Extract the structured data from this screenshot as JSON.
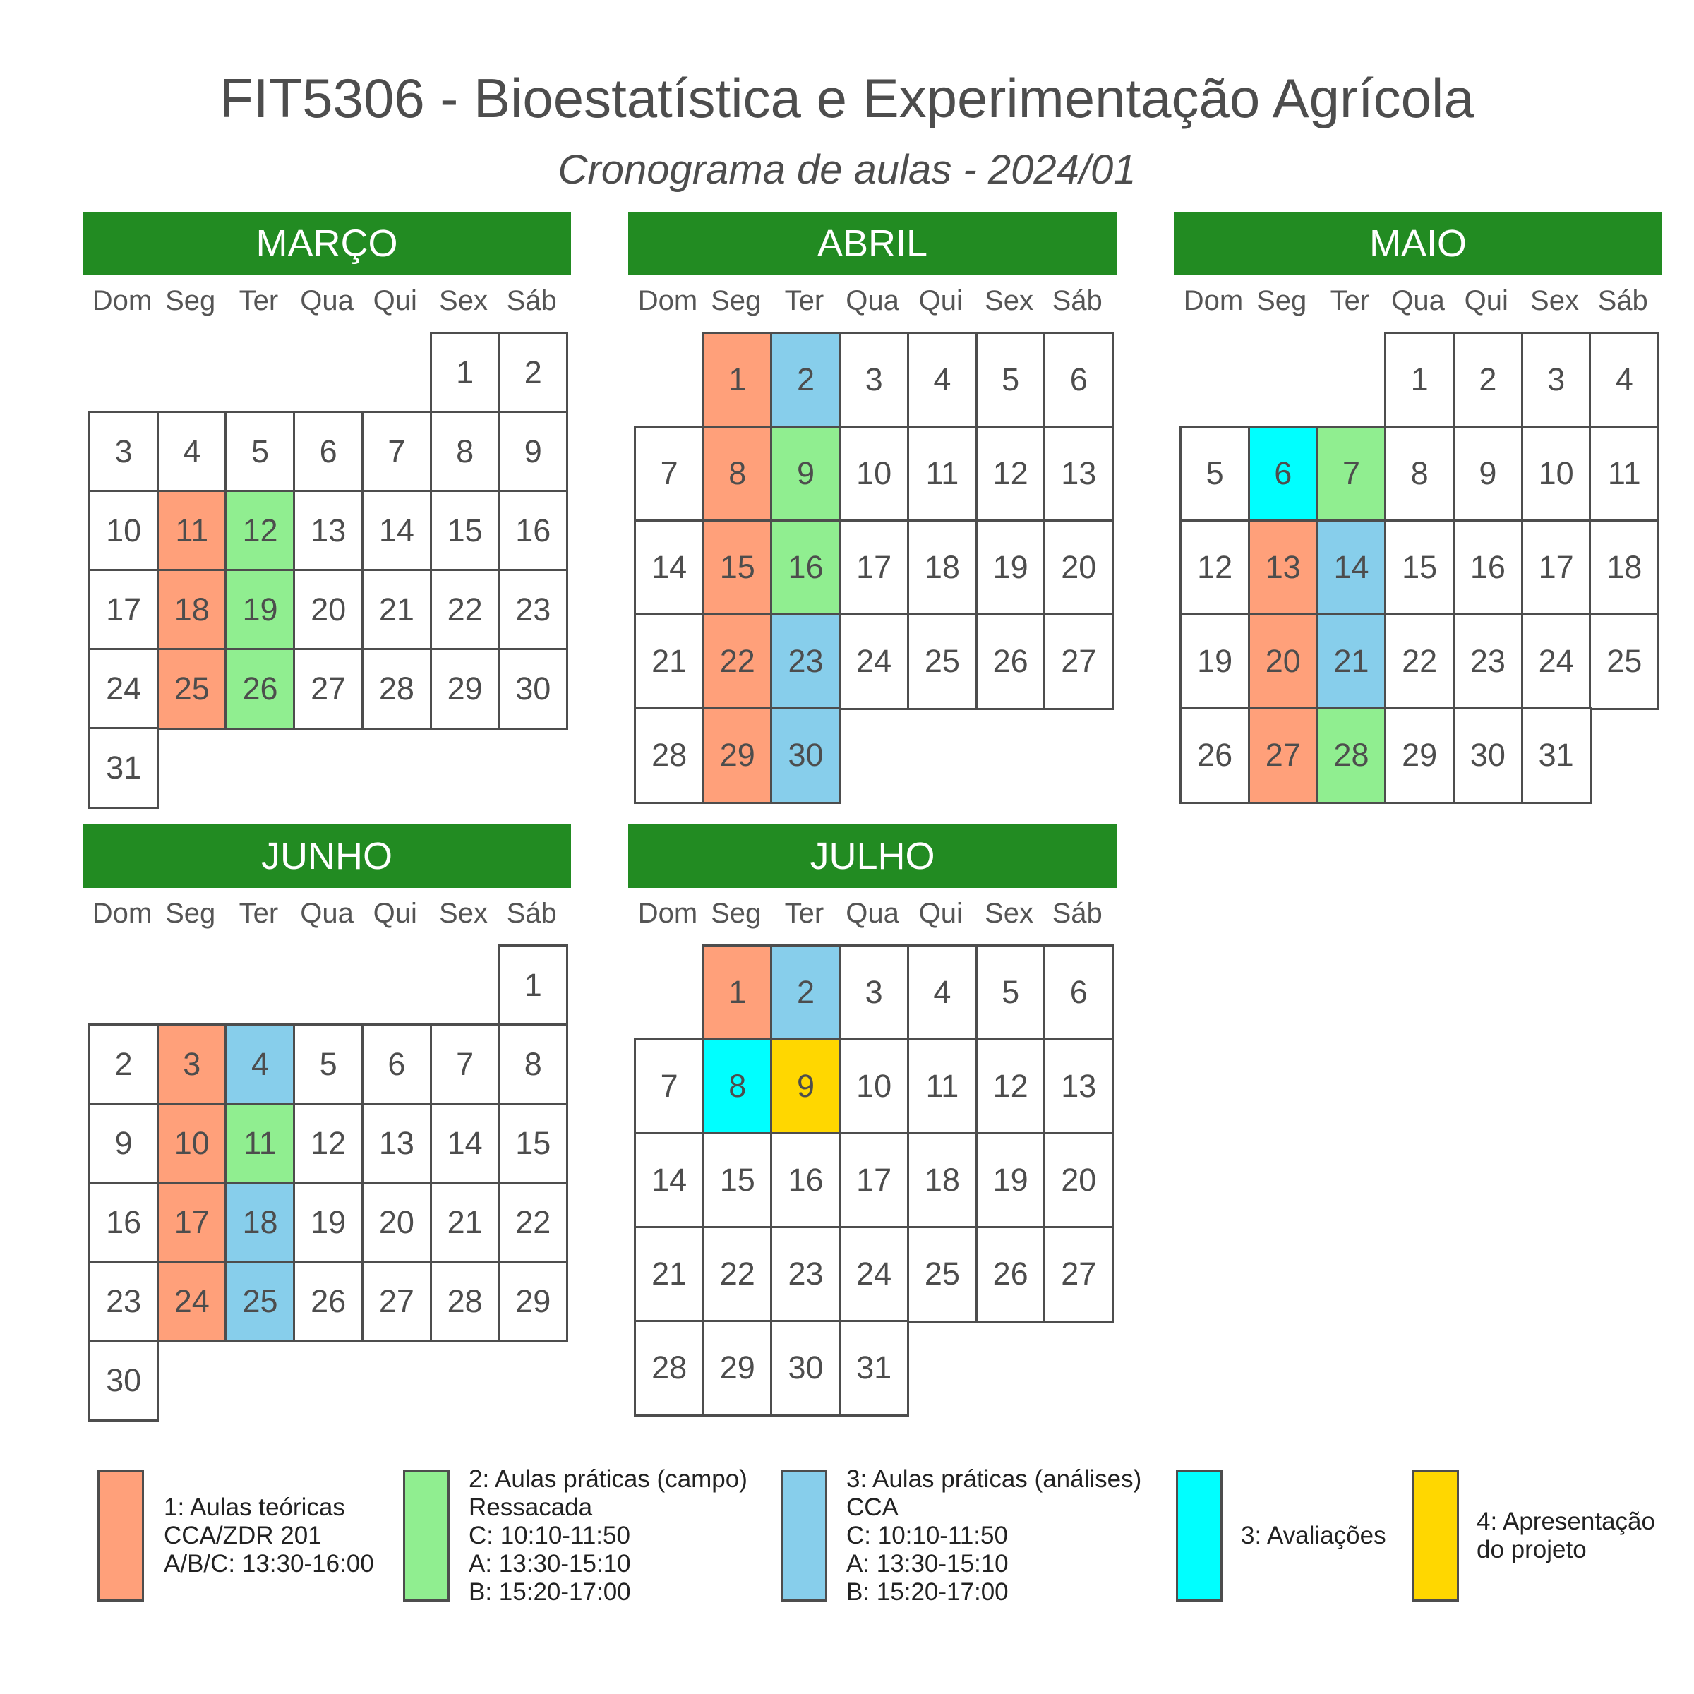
{
  "header": {
    "title": "FIT5306 - Bioestatística e Experimentação Agrícola",
    "subtitle": "Cronograma de aulas - 2024/01"
  },
  "weekdays": [
    "Dom",
    "Seg",
    "Ter",
    "Qua",
    "Qui",
    "Sex",
    "Sáb"
  ],
  "colors": {
    "header_green": "#228B22",
    "border": "#4d4d4d",
    "teorica": "#FFA07A",
    "campo": "#90EE90",
    "analises": "#87CEEB",
    "avaliacao": "#00FFFF",
    "apresentacao": "#FFD700",
    "empty": "#FFFFFF"
  },
  "months": [
    {
      "name": "MARÇO",
      "days": 31,
      "first_weekday": 5,
      "highlights": {
        "11": "teorica",
        "18": "teorica",
        "25": "teorica",
        "12": "campo",
        "19": "campo",
        "26": "campo"
      }
    },
    {
      "name": "ABRIL",
      "days": 30,
      "first_weekday": 1,
      "highlights": {
        "1": "teorica",
        "8": "teorica",
        "15": "teorica",
        "22": "teorica",
        "29": "teorica",
        "2": "analises",
        "9": "campo",
        "16": "campo",
        "23": "analises",
        "30": "analises"
      }
    },
    {
      "name": "MAIO",
      "days": 31,
      "first_weekday": 3,
      "highlights": {
        "6": "avaliacao",
        "7": "campo",
        "13": "teorica",
        "14": "analises",
        "20": "teorica",
        "21": "analises",
        "27": "teorica",
        "28": "campo"
      }
    },
    {
      "name": "JUNHO",
      "days": 30,
      "first_weekday": 6,
      "highlights": {
        "3": "teorica",
        "4": "analises",
        "10": "teorica",
        "11": "campo",
        "17": "teorica",
        "18": "analises",
        "24": "teorica",
        "25": "analises"
      }
    },
    {
      "name": "JULHO",
      "days": 31,
      "first_weekday": 1,
      "highlights": {
        "1": "teorica",
        "2": "analises",
        "8": "avaliacao",
        "9": "apresentacao"
      }
    }
  ],
  "legend": [
    {
      "type": "teorica",
      "lines": [
        "1: Aulas teóricas",
        "CCA/ZDR 201",
        "A/B/C: 13:30-16:00"
      ]
    },
    {
      "type": "campo",
      "lines": [
        "2: Aulas práticas (campo)",
        "Ressacada",
        "C: 10:10-11:50",
        "A: 13:30-15:10",
        "B: 15:20-17:00"
      ]
    },
    {
      "type": "analises",
      "lines": [
        "3: Aulas práticas (análises)",
        "CCA",
        "C: 10:10-11:50",
        "A: 13:30-15:10",
        "B: 15:20-17:00"
      ]
    },
    {
      "type": "avaliacao",
      "lines": [
        "3: Avaliações"
      ]
    },
    {
      "type": "apresentacao",
      "lines": [
        "4: Apresentação",
        "do projeto"
      ]
    }
  ]
}
